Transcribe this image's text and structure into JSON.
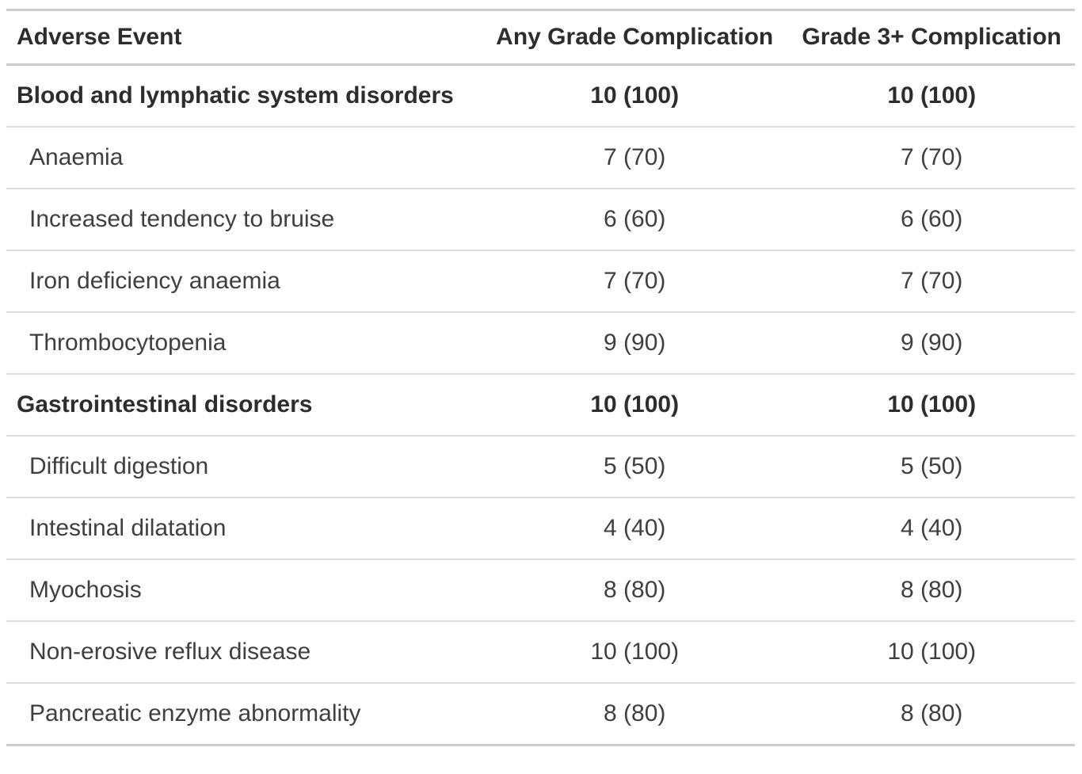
{
  "colors": {
    "background": "#ffffff",
    "body_text": "#3f3f3f",
    "bold_text": "#2d2d2d",
    "heavy_border": "#cccccc",
    "light_border": "#dddddd"
  },
  "table": {
    "columns": [
      {
        "label": "Adverse Event",
        "align": "left"
      },
      {
        "label": "Any Grade Complication",
        "align": "center"
      },
      {
        "label": "Grade 3+ Complication",
        "align": "center"
      }
    ],
    "rows": [
      {
        "event": "Blood and lymphatic system disorders",
        "is_category": true,
        "any_grade": "10 (100)",
        "grade_3_plus": "10 (100)"
      },
      {
        "event": "Anaemia",
        "is_category": false,
        "any_grade": "7 (70)",
        "grade_3_plus": "7 (70)"
      },
      {
        "event": "Increased tendency to bruise",
        "is_category": false,
        "any_grade": "6 (60)",
        "grade_3_plus": "6 (60)"
      },
      {
        "event": "Iron deficiency anaemia",
        "is_category": false,
        "any_grade": "7 (70)",
        "grade_3_plus": "7 (70)"
      },
      {
        "event": "Thrombocytopenia",
        "is_category": false,
        "any_grade": "9 (90)",
        "grade_3_plus": "9 (90)"
      },
      {
        "event": "Gastrointestinal disorders",
        "is_category": true,
        "any_grade": "10 (100)",
        "grade_3_plus": "10 (100)"
      },
      {
        "event": "Difficult digestion",
        "is_category": false,
        "any_grade": "5 (50)",
        "grade_3_plus": "5 (50)"
      },
      {
        "event": "Intestinal dilatation",
        "is_category": false,
        "any_grade": "4 (40)",
        "grade_3_plus": "4 (40)"
      },
      {
        "event": "Myochosis",
        "is_category": false,
        "any_grade": "8 (80)",
        "grade_3_plus": "8 (80)"
      },
      {
        "event": "Non-erosive reflux disease",
        "is_category": false,
        "any_grade": "10 (100)",
        "grade_3_plus": "10 (100)"
      },
      {
        "event": "Pancreatic enzyme abnormality",
        "is_category": false,
        "any_grade": "8 (80)",
        "grade_3_plus": "8 (80)"
      }
    ]
  }
}
